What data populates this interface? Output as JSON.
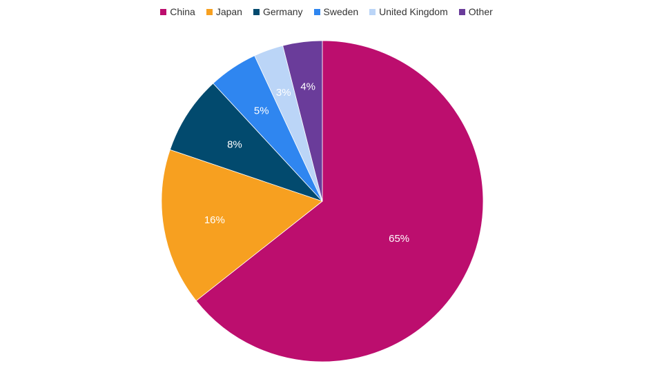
{
  "chart_data": {
    "type": "pie",
    "title": "",
    "legend_position": "top",
    "start": "top, clockwise",
    "categories": [
      "China",
      "Japan",
      "Germany",
      "Sweden",
      "United Kingdom",
      "Other"
    ],
    "values": [
      65,
      16,
      8,
      5,
      3,
      4
    ],
    "data_labels": [
      "65%",
      "16%",
      "8%",
      "5%",
      "3%",
      "4%"
    ],
    "colors": [
      "#BC0E6E",
      "#F7A020",
      "#024A6E",
      "#2F86F0",
      "#BBD5F7",
      "#6A3C9A"
    ]
  }
}
